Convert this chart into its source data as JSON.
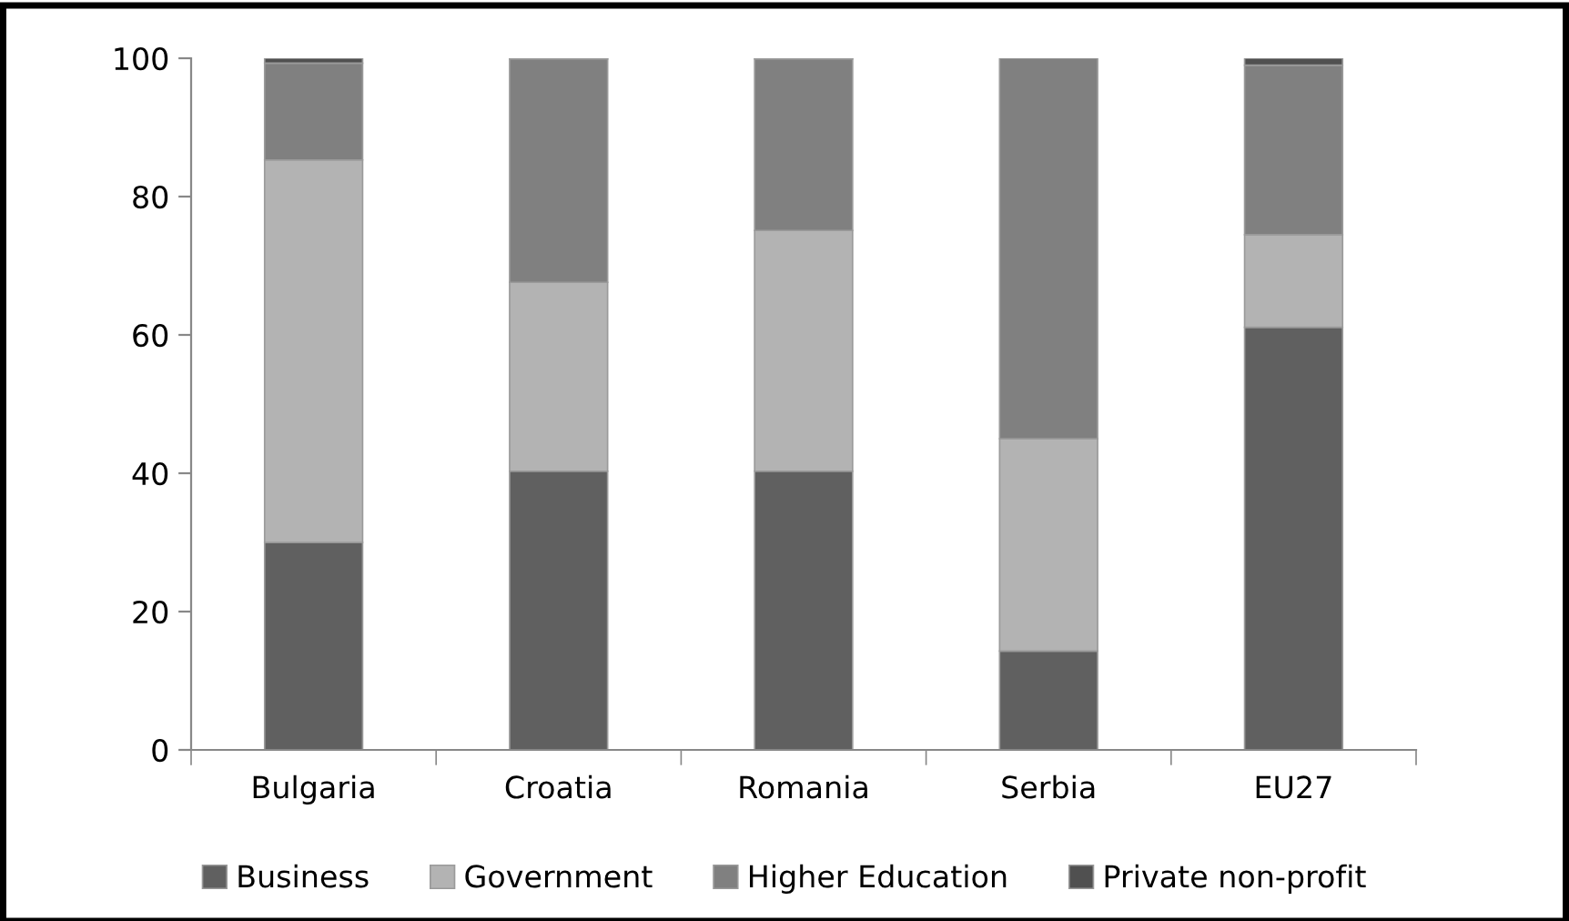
{
  "chart_data": {
    "type": "bar",
    "stacked": true,
    "categories": [
      "Bulgaria",
      "Croatia",
      "Romania",
      "Serbia",
      "EU27"
    ],
    "series": [
      {
        "name": "Business",
        "color": "#606060",
        "values": [
          30,
          40.3,
          40.3,
          14.3,
          61.1
        ]
      },
      {
        "name": "Government",
        "color": "#b3b3b3",
        "values": [
          55.3,
          27.3,
          34.8,
          30.7,
          13.4
        ]
      },
      {
        "name": "Higher Education",
        "color": "#808080",
        "values": [
          14,
          32.3,
          24.8,
          55,
          24.5
        ]
      },
      {
        "name": "Private non-profit",
        "color": "#505050",
        "values": [
          0.7,
          0.1,
          0.1,
          null,
          1.0
        ]
      }
    ],
    "ylim": [
      0,
      100
    ],
    "yticks": [
      0,
      20,
      40,
      60,
      80,
      100
    ],
    "grid": false,
    "legend": "bottom"
  }
}
